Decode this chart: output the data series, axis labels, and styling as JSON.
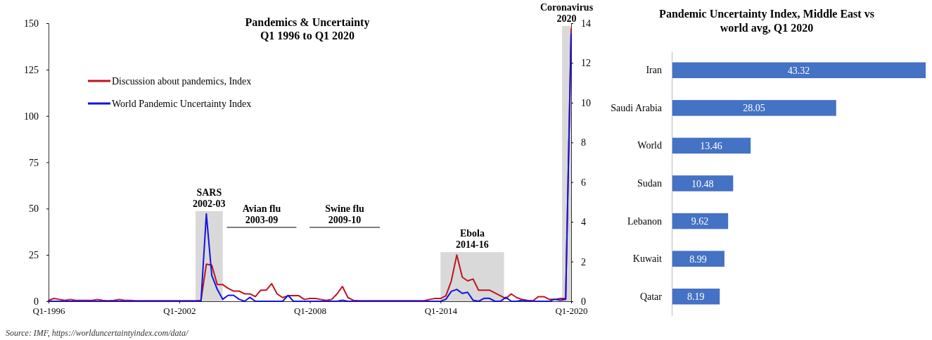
{
  "chart_data": [
    {
      "type": "line",
      "title": "Pandemics & Uncertainty",
      "subtitle": "Q1 1996 to Q1 2020",
      "x": [
        "1996-01",
        "1996-04",
        "1996-07",
        "1996-10",
        "1997-01",
        "1997-04",
        "1997-07",
        "1997-10",
        "1998-01",
        "1998-04",
        "1998-07",
        "1998-10",
        "1999-01",
        "1999-04",
        "1999-07",
        "1999-10",
        "2000-01",
        "2000-04",
        "2000-07",
        "2000-10",
        "2001-01",
        "2001-04",
        "2001-07",
        "2001-10",
        "2002-01",
        "2002-04",
        "2002-07",
        "2002-10",
        "2003-01",
        "2003-04",
        "2003-07",
        "2003-10",
        "2004-01",
        "2004-04",
        "2004-07",
        "2004-10",
        "2005-01",
        "2005-04",
        "2005-07",
        "2005-10",
        "2006-01",
        "2006-04",
        "2006-07",
        "2006-10",
        "2007-01",
        "2007-04",
        "2007-07",
        "2007-10",
        "2008-01",
        "2008-04",
        "2008-07",
        "2008-10",
        "2009-01",
        "2009-04",
        "2009-07",
        "2009-10",
        "2010-01",
        "2010-04",
        "2010-07",
        "2010-10",
        "2011-01",
        "2011-04",
        "2011-07",
        "2011-10",
        "2012-01",
        "2012-04",
        "2012-07",
        "2012-10",
        "2013-01",
        "2013-04",
        "2013-07",
        "2013-10",
        "2014-01",
        "2014-04",
        "2014-07",
        "2014-10",
        "2015-01",
        "2015-04",
        "2015-07",
        "2015-10",
        "2016-01",
        "2016-04",
        "2016-07",
        "2016-10",
        "2017-01",
        "2017-04",
        "2017-07",
        "2017-10",
        "2018-01",
        "2018-04",
        "2018-07",
        "2018-10",
        "2019-01",
        "2019-04",
        "2019-07",
        "2019-10",
        "2020-01"
      ],
      "xlim": [
        "1996-01",
        "2020-01"
      ],
      "xticks": [
        {
          "value": "1996-01",
          "label": "Q1-1996"
        },
        {
          "value": "2002-01",
          "label": "Q1-2002"
        },
        {
          "value": "2008-01",
          "label": "Q1-2008"
        },
        {
          "value": "2014-01",
          "label": "Q1-2014"
        },
        {
          "value": "2020-01",
          "label": "Q1-2020"
        }
      ],
      "ylim": [
        0,
        150
      ],
      "yticks": [
        0,
        25,
        50,
        75,
        100,
        125,
        150
      ],
      "y2lim": [
        0,
        14
      ],
      "y2ticks": [
        0,
        2,
        4,
        6,
        8,
        10,
        12,
        14
      ],
      "legend": "top left",
      "series": [
        {
          "name": "Discussion about pandemics, Index",
          "color": "#c0141c",
          "values": [
            0.5,
            1.5,
            1,
            0.5,
            1,
            0.5,
            0.5,
            0.5,
            0.5,
            1,
            0.5,
            0.3,
            0.5,
            1,
            0.5,
            0.5,
            0.3,
            0.3,
            0.3,
            0.3,
            0.3,
            0.3,
            0.3,
            0.3,
            0.3,
            0.3,
            0.3,
            0.3,
            0.5,
            20,
            19.5,
            9,
            9,
            7,
            5.5,
            5.5,
            4,
            4,
            2.5,
            6,
            6,
            9.5,
            4,
            2,
            3,
            3,
            3,
            1,
            1.5,
            1.5,
            1,
            0.5,
            1,
            4,
            8,
            2,
            0.5,
            0.3,
            0.3,
            0.3,
            0.3,
            0.3,
            0.3,
            0.3,
            0.3,
            0.3,
            0.3,
            0.3,
            0.3,
            0.3,
            1,
            1.5,
            1.5,
            3,
            11,
            25,
            13,
            11,
            12,
            6,
            6,
            6,
            4.5,
            3,
            1.5,
            4,
            2,
            1,
            0.5,
            0.3,
            2.5,
            2.5,
            1,
            1,
            1.5,
            1.5,
            147
          ]
        },
        {
          "name": "World Pandemic Uncertainty Index",
          "color": "#1414e0",
          "axis": "y2",
          "values": [
            0,
            0,
            0,
            0,
            0,
            0,
            0,
            0,
            0,
            0,
            0,
            0,
            0,
            0,
            0,
            0,
            0,
            0,
            0,
            0,
            0,
            0,
            0,
            0,
            0,
            0,
            0,
            0,
            0,
            4.4,
            1.3,
            0.6,
            0.1,
            0.3,
            0.3,
            0.1,
            0,
            0.2,
            0,
            0,
            0,
            0,
            0,
            0,
            0.3,
            0,
            0,
            0,
            0,
            0,
            0,
            0,
            0,
            0,
            0.05,
            0,
            0,
            0,
            0,
            0,
            0,
            0,
            0,
            0,
            0,
            0,
            0,
            0,
            0,
            0,
            0,
            0,
            0,
            0.1,
            0.5,
            0.6,
            0.4,
            0.45,
            0.05,
            0,
            0.15,
            0.15,
            0,
            0,
            0.2,
            0,
            0,
            0.05,
            0,
            0,
            0,
            0,
            0,
            0.1,
            0.05,
            0.1,
            13.46
          ]
        }
      ],
      "bands": [
        {
          "axis": "x",
          "from": "2002-10",
          "to": "2004-01",
          "label": "SARS\n2002-03",
          "color": "#d9d9d9"
        },
        {
          "axis": "x",
          "from": "2014-01",
          "to": "2016-12",
          "label": "Ebola\n2014-16",
          "color": "#d9d9d9"
        },
        {
          "axis": "x",
          "from": "2019-08",
          "to": "2020-01",
          "label": "Coronavirus\n2020",
          "color": "#d9d9d9"
        }
      ],
      "annotations": [
        "Avian flu\n2003-09",
        "Swine flu\n2009-10",
        "Source: IMF, https://worlduncertaintyindex.com/data/"
      ]
    },
    {
      "type": "bar",
      "orientation": "horizontal",
      "title": "Pandemic Uncertainty Index, Middle East vs world avg, Q1 2020",
      "categories": [
        "Iran",
        "Saudi Arabia",
        "World",
        "Sudan",
        "Lebanon",
        "Kuwait",
        "Qatar"
      ],
      "values": [
        43.32,
        28.05,
        13.46,
        10.48,
        9.62,
        8.99,
        8.19
      ],
      "color": "#4472c4",
      "data_labels": true
    }
  ]
}
